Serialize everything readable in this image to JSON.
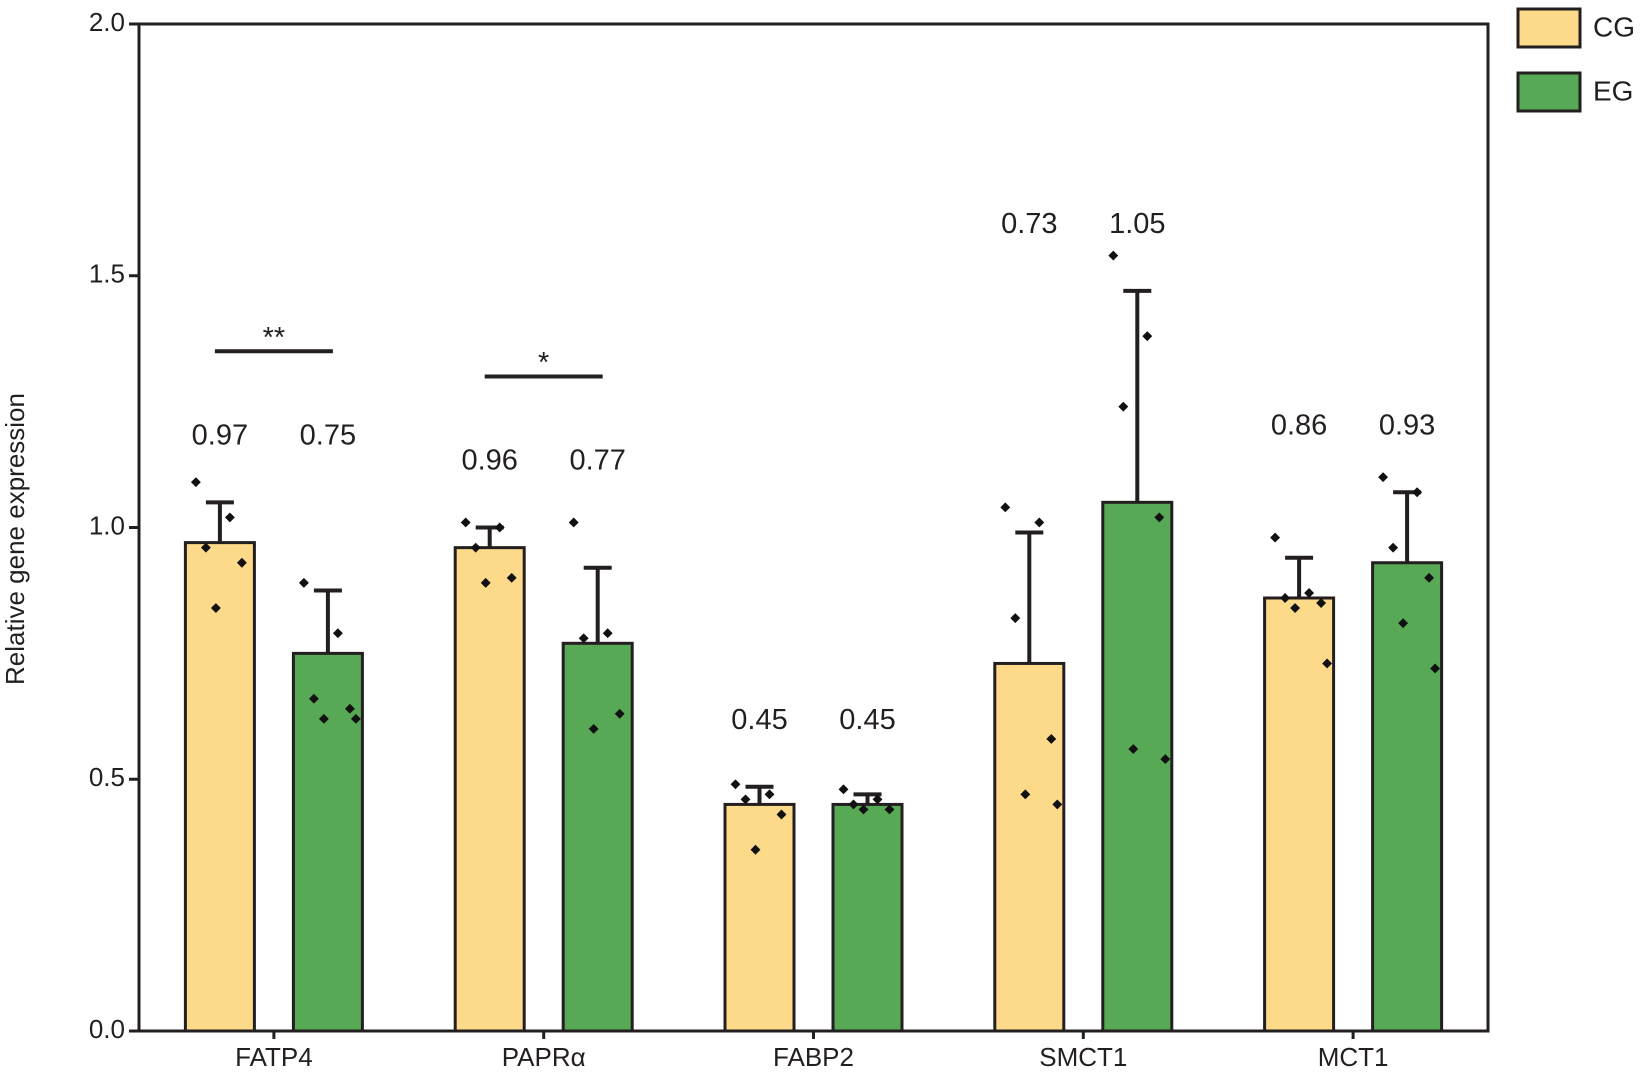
{
  "chart_data": {
    "type": "bar",
    "y_label": "Relative gene expression",
    "categories": [
      "FATP4",
      "PAPRα",
      "FABP2",
      "SMCT1",
      "MCT1"
    ],
    "series": [
      {
        "name": "CG",
        "color": "#fdd98a",
        "values": [
          0.97,
          0.96,
          0.45,
          0.73,
          0.86
        ],
        "errors": [
          0.08,
          0.04,
          0.035,
          0.26,
          0.08
        ],
        "points": [
          [
            1.09,
            1.02,
            0.96,
            0.93,
            0.84
          ],
          [
            1.01,
            1.0,
            0.96,
            0.9,
            0.89
          ],
          [
            0.49,
            0.47,
            0.46,
            0.43,
            0.36
          ],
          [
            1.04,
            1.01,
            0.82,
            0.58,
            0.47,
            0.45
          ],
          [
            0.98,
            0.87,
            0.86,
            0.85,
            0.84,
            0.73
          ]
        ]
      },
      {
        "name": "EG",
        "color": "#58a955",
        "values": [
          0.75,
          0.77,
          0.45,
          1.05,
          0.93
        ],
        "errors": [
          0.125,
          0.15,
          0.02,
          0.42,
          0.14
        ],
        "points": [
          [
            0.89,
            0.79,
            0.66,
            0.64,
            0.62,
            0.62
          ],
          [
            1.01,
            0.79,
            0.78,
            0.63,
            0.6
          ],
          [
            0.48,
            0.46,
            0.45,
            0.44,
            0.44
          ],
          [
            1.54,
            1.38,
            1.24,
            1.02,
            0.56,
            0.54
          ],
          [
            1.1,
            1.07,
            0.96,
            0.9,
            0.81,
            0.72
          ]
        ]
      }
    ],
    "significance": [
      {
        "category": "FATP4",
        "label": "**"
      },
      {
        "category": "PAPRα",
        "label": "*"
      }
    ],
    "ylim": [
      0,
      2
    ],
    "yticks": [
      {
        "value": 0,
        "label": "0.0"
      },
      0.5,
      {
        "value": 1,
        "label": "1.0"
      },
      1.5,
      {
        "value": 2,
        "label": "2.0"
      }
    ],
    "grid": false,
    "legend": "top-right"
  }
}
